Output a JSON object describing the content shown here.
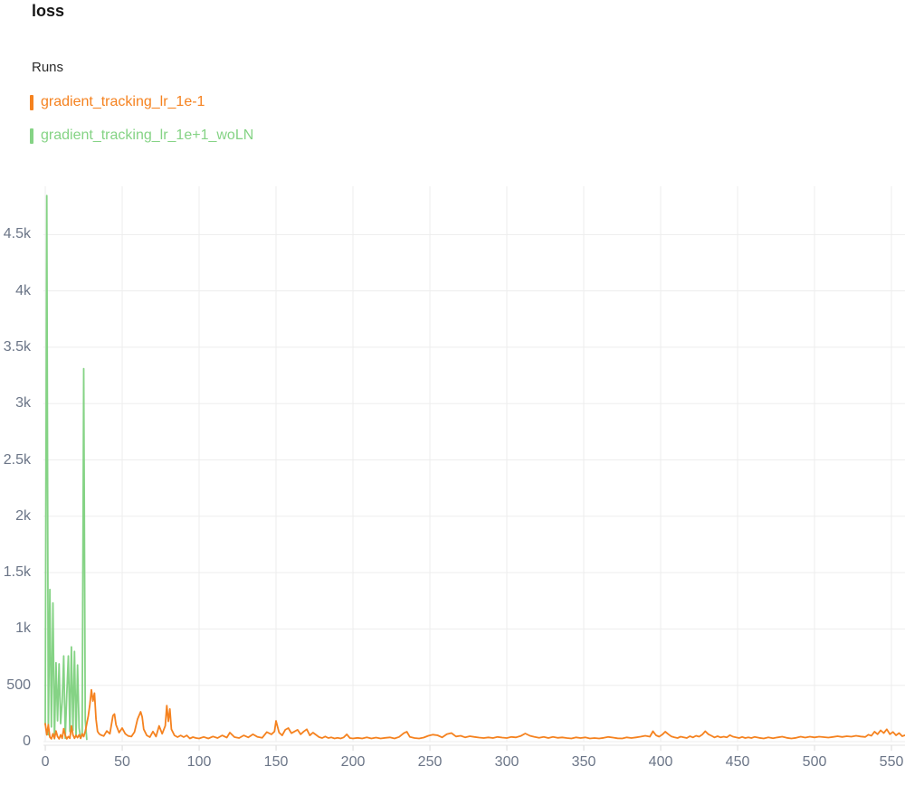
{
  "header": {
    "title": "loss"
  },
  "legend": {
    "label": "Runs",
    "runs": [
      {
        "name": "gradient_tracking_lr_1e-1",
        "color": "#F5821F"
      },
      {
        "name": "gradient_tracking_lr_1e+1_woLN",
        "color": "#85D385"
      }
    ]
  },
  "colors": {
    "gridline": "#EDEDED",
    "axis_line": "#E3E3E3",
    "tick_mark": "#D9D9D9",
    "tick_label": "#6B7587"
  },
  "chart_data": {
    "type": "line",
    "title": "loss",
    "xlabel": "",
    "ylabel": "",
    "grid": true,
    "legend_position": "top-left-above",
    "xlim": [
      -1.2,
      558.8
    ],
    "ylim": [
      0,
      4928
    ],
    "xticks": [
      0,
      50,
      100,
      150,
      200,
      250,
      300,
      350,
      400,
      450,
      500,
      550
    ],
    "yticks": [
      {
        "value": 0,
        "label": "0"
      },
      {
        "value": 500,
        "label": "500"
      },
      {
        "value": 1000,
        "label": "1k"
      },
      {
        "value": 1500,
        "label": "1.5k"
      },
      {
        "value": 2000,
        "label": "2k"
      },
      {
        "value": 2500,
        "label": "2.5k"
      },
      {
        "value": 3000,
        "label": "3k"
      },
      {
        "value": 3500,
        "label": "3.5k"
      },
      {
        "value": 4000,
        "label": "4k"
      },
      {
        "value": 4500,
        "label": "4.5k"
      }
    ],
    "series": [
      {
        "name": "gradient_tracking_lr_1e-1",
        "color": "#F5821F",
        "points": [
          [
            0,
            160
          ],
          [
            1,
            60
          ],
          [
            2,
            150
          ],
          [
            3,
            40
          ],
          [
            4,
            25
          ],
          [
            5,
            70
          ],
          [
            6,
            30
          ],
          [
            7,
            95
          ],
          [
            8,
            45
          ],
          [
            9,
            25
          ],
          [
            10,
            60
          ],
          [
            11,
            30
          ],
          [
            12,
            115
          ],
          [
            13,
            55
          ],
          [
            14,
            25
          ],
          [
            15,
            45
          ],
          [
            16,
            30
          ],
          [
            17,
            140
          ],
          [
            18,
            60
          ],
          [
            19,
            30
          ],
          [
            20,
            55
          ],
          [
            21,
            35
          ],
          [
            22,
            60
          ],
          [
            23,
            30
          ],
          [
            24,
            70
          ],
          [
            25,
            45
          ],
          [
            26,
            90
          ],
          [
            27,
            160
          ],
          [
            28,
            230
          ],
          [
            29,
            330
          ],
          [
            30,
            460
          ],
          [
            31,
            360
          ],
          [
            32,
            430
          ],
          [
            33,
            200
          ],
          [
            34,
            90
          ],
          [
            35,
            70
          ],
          [
            36,
            60
          ],
          [
            38,
            50
          ],
          [
            40,
            95
          ],
          [
            42,
            70
          ],
          [
            44,
            230
          ],
          [
            45,
            245
          ],
          [
            46,
            150
          ],
          [
            48,
            80
          ],
          [
            50,
            120
          ],
          [
            52,
            70
          ],
          [
            54,
            50
          ],
          [
            56,
            45
          ],
          [
            58,
            85
          ],
          [
            60,
            200
          ],
          [
            62,
            265
          ],
          [
            63,
            220
          ],
          [
            64,
            110
          ],
          [
            66,
            55
          ],
          [
            68,
            40
          ],
          [
            70,
            90
          ],
          [
            72,
            45
          ],
          [
            74,
            140
          ],
          [
            76,
            70
          ],
          [
            78,
            140
          ],
          [
            79,
            320
          ],
          [
            80,
            180
          ],
          [
            81,
            290
          ],
          [
            82,
            110
          ],
          [
            84,
            55
          ],
          [
            86,
            40
          ],
          [
            88,
            55
          ],
          [
            90,
            40
          ],
          [
            92,
            55
          ],
          [
            94,
            28
          ],
          [
            96,
            40
          ],
          [
            98,
            32
          ],
          [
            100,
            28
          ],
          [
            103,
            42
          ],
          [
            106,
            28
          ],
          [
            109,
            46
          ],
          [
            112,
            32
          ],
          [
            115,
            55
          ],
          [
            118,
            36
          ],
          [
            120,
            80
          ],
          [
            123,
            40
          ],
          [
            126,
            32
          ],
          [
            129,
            55
          ],
          [
            132,
            38
          ],
          [
            135,
            65
          ],
          [
            138,
            42
          ],
          [
            141,
            34
          ],
          [
            144,
            85
          ],
          [
            147,
            65
          ],
          [
            149,
            90
          ],
          [
            150,
            185
          ],
          [
            152,
            80
          ],
          [
            154,
            55
          ],
          [
            156,
            105
          ],
          [
            158,
            120
          ],
          [
            160,
            75
          ],
          [
            162,
            90
          ],
          [
            164,
            105
          ],
          [
            166,
            65
          ],
          [
            168,
            90
          ],
          [
            170,
            110
          ],
          [
            172,
            55
          ],
          [
            174,
            80
          ],
          [
            176,
            60
          ],
          [
            178,
            40
          ],
          [
            180,
            32
          ],
          [
            182,
            46
          ],
          [
            184,
            32
          ],
          [
            186,
            38
          ],
          [
            188,
            28
          ],
          [
            190,
            34
          ],
          [
            192,
            28
          ],
          [
            194,
            38
          ],
          [
            196,
            65
          ],
          [
            198,
            32
          ],
          [
            200,
            28
          ],
          [
            203,
            34
          ],
          [
            206,
            28
          ],
          [
            209,
            38
          ],
          [
            212,
            28
          ],
          [
            215,
            36
          ],
          [
            218,
            28
          ],
          [
            221,
            34
          ],
          [
            224,
            38
          ],
          [
            227,
            28
          ],
          [
            230,
            42
          ],
          [
            233,
            75
          ],
          [
            235,
            88
          ],
          [
            237,
            42
          ],
          [
            240,
            32
          ],
          [
            243,
            28
          ],
          [
            246,
            36
          ],
          [
            249,
            52
          ],
          [
            252,
            62
          ],
          [
            255,
            56
          ],
          [
            258,
            38
          ],
          [
            261,
            66
          ],
          [
            264,
            76
          ],
          [
            267,
            46
          ],
          [
            270,
            52
          ],
          [
            273,
            38
          ],
          [
            276,
            48
          ],
          [
            279,
            42
          ],
          [
            282,
            36
          ],
          [
            285,
            32
          ],
          [
            288,
            38
          ],
          [
            291,
            32
          ],
          [
            294,
            42
          ],
          [
            297,
            36
          ],
          [
            300,
            32
          ],
          [
            303,
            42
          ],
          [
            306,
            38
          ],
          [
            309,
            50
          ],
          [
            312,
            72
          ],
          [
            315,
            52
          ],
          [
            318,
            42
          ],
          [
            321,
            34
          ],
          [
            324,
            42
          ],
          [
            327,
            32
          ],
          [
            330,
            42
          ],
          [
            333,
            34
          ],
          [
            336,
            38
          ],
          [
            339,
            32
          ],
          [
            342,
            28
          ],
          [
            345,
            38
          ],
          [
            348,
            32
          ],
          [
            351,
            38
          ],
          [
            354,
            28
          ],
          [
            357,
            32
          ],
          [
            360,
            28
          ],
          [
            363,
            34
          ],
          [
            366,
            42
          ],
          [
            369,
            36
          ],
          [
            372,
            30
          ],
          [
            375,
            28
          ],
          [
            378,
            38
          ],
          [
            381,
            32
          ],
          [
            384,
            38
          ],
          [
            387,
            44
          ],
          [
            390,
            52
          ],
          [
            393,
            44
          ],
          [
            395,
            92
          ],
          [
            397,
            56
          ],
          [
            399,
            44
          ],
          [
            401,
            62
          ],
          [
            403,
            88
          ],
          [
            405,
            66
          ],
          [
            407,
            46
          ],
          [
            409,
            38
          ],
          [
            411,
            32
          ],
          [
            413,
            44
          ],
          [
            415,
            38
          ],
          [
            417,
            32
          ],
          [
            419,
            48
          ],
          [
            421,
            38
          ],
          [
            423,
            52
          ],
          [
            425,
            44
          ],
          [
            427,
            62
          ],
          [
            429,
            92
          ],
          [
            431,
            66
          ],
          [
            433,
            52
          ],
          [
            435,
            38
          ],
          [
            437,
            48
          ],
          [
            439,
            38
          ],
          [
            441,
            44
          ],
          [
            443,
            38
          ],
          [
            445,
            58
          ],
          [
            447,
            44
          ],
          [
            449,
            38
          ],
          [
            451,
            32
          ],
          [
            453,
            42
          ],
          [
            455,
            32
          ],
          [
            457,
            38
          ],
          [
            459,
            32
          ],
          [
            461,
            42
          ],
          [
            464,
            34
          ],
          [
            467,
            28
          ],
          [
            470,
            38
          ],
          [
            473,
            30
          ],
          [
            476,
            38
          ],
          [
            479,
            44
          ],
          [
            482,
            34
          ],
          [
            485,
            28
          ],
          [
            488,
            34
          ],
          [
            491,
            44
          ],
          [
            494,
            36
          ],
          [
            497,
            44
          ],
          [
            500,
            38
          ],
          [
            503,
            44
          ],
          [
            506,
            40
          ],
          [
            509,
            36
          ],
          [
            512,
            42
          ],
          [
            515,
            48
          ],
          [
            518,
            42
          ],
          [
            521,
            48
          ],
          [
            524,
            44
          ],
          [
            527,
            52
          ],
          [
            530,
            46
          ],
          [
            533,
            42
          ],
          [
            535,
            62
          ],
          [
            537,
            52
          ],
          [
            539,
            88
          ],
          [
            541,
            66
          ],
          [
            543,
            100
          ],
          [
            545,
            76
          ],
          [
            547,
            110
          ],
          [
            549,
            66
          ],
          [
            551,
            86
          ],
          [
            553,
            56
          ],
          [
            555,
            76
          ],
          [
            557,
            48
          ],
          [
            559,
            58
          ]
        ]
      },
      {
        "name": "gradient_tracking_lr_1e+1_woLN",
        "color": "#85D385",
        "points": [
          [
            0,
            150
          ],
          [
            1,
            4845
          ],
          [
            2,
            60
          ],
          [
            3,
            1350
          ],
          [
            4,
            130
          ],
          [
            5,
            1230
          ],
          [
            6,
            25
          ],
          [
            7,
            700
          ],
          [
            8,
            185
          ],
          [
            9,
            690
          ],
          [
            10,
            160
          ],
          [
            11,
            350
          ],
          [
            12,
            760
          ],
          [
            13,
            30
          ],
          [
            14,
            420
          ],
          [
            15,
            760
          ],
          [
            16,
            90
          ],
          [
            17,
            840
          ],
          [
            18,
            100
          ],
          [
            19,
            800
          ],
          [
            20,
            45
          ],
          [
            21,
            680
          ],
          [
            22,
            120
          ],
          [
            23,
            30
          ],
          [
            24,
            60
          ],
          [
            25,
            3310
          ],
          [
            26,
            190
          ],
          [
            27,
            20
          ]
        ]
      }
    ]
  }
}
